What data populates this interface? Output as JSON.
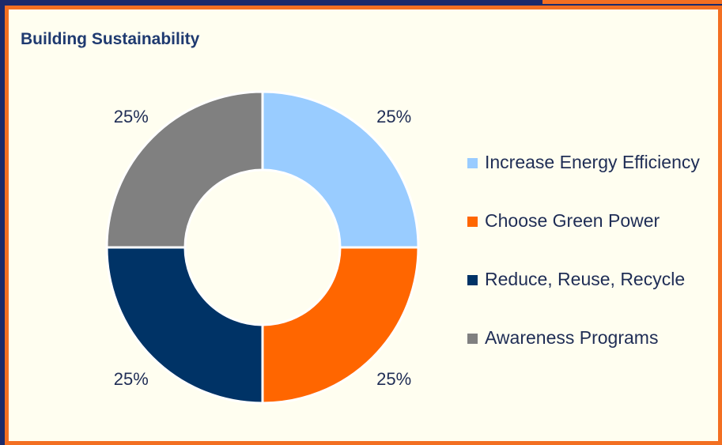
{
  "chart_data": {
    "type": "pie",
    "variant": "donut",
    "title": "Building Sustainability",
    "categories": [
      "Increase Energy Efficiency",
      "Choose Green Power",
      "Reduce, Reuse, Recycle",
      "Awareness Programs"
    ],
    "values": [
      25,
      25,
      25,
      25
    ],
    "data_labels": [
      "25%",
      "25%",
      "25%",
      "25%"
    ],
    "colors": [
      "#99ccff",
      "#ff6600",
      "#003366",
      "#808080"
    ],
    "legend_position": "right"
  }
}
